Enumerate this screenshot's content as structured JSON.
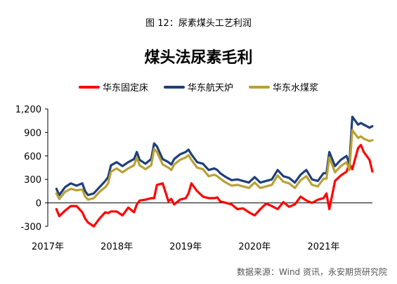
{
  "figure": {
    "caption": "图 12：尿素煤头工艺利润",
    "source": "数据来源：Wind 资讯，永安期货研究院"
  },
  "colors": {
    "fixed_bed": "#ff0000",
    "aerospace_furnace": "#1f3f7a",
    "coal_water_slurry": "#b8a135",
    "axis": "#000000"
  },
  "chart_data": {
    "type": "line",
    "title": "煤头法尿素毛利",
    "xlabel": "",
    "ylabel": "",
    "x_tick_labels": [
      "2017年",
      "2018年",
      "2019年",
      "2020年",
      "2021年"
    ],
    "x_tick_values": [
      0,
      12,
      24,
      36,
      48
    ],
    "xlim": [
      0,
      56.5
    ],
    "y_ticks": [
      -300,
      0,
      300,
      600,
      900,
      1200
    ],
    "y_tick_labels": [
      "-300",
      "0",
      "300",
      "600",
      "900",
      "1,200"
    ],
    "ylim": [
      -300,
      1200
    ],
    "legend_position": "top",
    "x": [
      1.5,
      2,
      3,
      4,
      5,
      6,
      6.5,
      7,
      8,
      9,
      10,
      10.5,
      11,
      12,
      13,
      14,
      15,
      15.5,
      16,
      17,
      18,
      18.5,
      19,
      20,
      21,
      21.5,
      22,
      23,
      24,
      24.5,
      25,
      26,
      27,
      28,
      29,
      29.5,
      30,
      31,
      32,
      33,
      34,
      35,
      36,
      37,
      38,
      39,
      40,
      41,
      42,
      43,
      44,
      45,
      46,
      47,
      48,
      48.5,
      49,
      50,
      51,
      52,
      52.5,
      53,
      54,
      54.5,
      55,
      56,
      56.5
    ],
    "series": [
      {
        "name": "华东固定床",
        "key": "fixed_bed",
        "values": [
          -80,
          -170,
          -100,
          -40,
          -40,
          -120,
          -200,
          -250,
          -300,
          -200,
          -120,
          -130,
          -110,
          -110,
          -160,
          -60,
          -120,
          -20,
          30,
          40,
          60,
          60,
          230,
          250,
          20,
          50,
          -20,
          40,
          60,
          120,
          250,
          150,
          80,
          60,
          60,
          70,
          20,
          0,
          -20,
          -80,
          -70,
          -120,
          -160,
          -80,
          -10,
          -40,
          -80,
          10,
          -50,
          -20,
          80,
          30,
          0,
          40,
          60,
          120,
          -80,
          280,
          350,
          400,
          500,
          430,
          700,
          740,
          650,
          550,
          400
        ]
      },
      {
        "name": "华东航天炉",
        "key": "aerospace_furnace",
        "values": [
          180,
          100,
          200,
          250,
          220,
          250,
          150,
          100,
          120,
          200,
          280,
          330,
          480,
          520,
          470,
          520,
          560,
          650,
          550,
          500,
          560,
          760,
          720,
          560,
          520,
          490,
          560,
          620,
          650,
          680,
          620,
          520,
          500,
          420,
          440,
          420,
          380,
          330,
          290,
          300,
          280,
          260,
          330,
          260,
          280,
          300,
          420,
          340,
          320,
          260,
          360,
          420,
          300,
          280,
          380,
          380,
          650,
          470,
          550,
          600,
          500,
          1100,
          1000,
          1020,
          1000,
          960,
          980
        ]
      },
      {
        "name": "华东水煤浆",
        "key": "coal_water_slurry",
        "values": [
          120,
          50,
          140,
          180,
          160,
          170,
          80,
          40,
          60,
          140,
          200,
          250,
          400,
          440,
          390,
          440,
          480,
          580,
          480,
          430,
          480,
          690,
          650,
          490,
          450,
          420,
          490,
          550,
          580,
          610,
          550,
          450,
          430,
          340,
          360,
          340,
          310,
          260,
          220,
          230,
          210,
          190,
          260,
          190,
          210,
          230,
          350,
          270,
          250,
          190,
          290,
          340,
          230,
          210,
          310,
          310,
          580,
          390,
          470,
          520,
          420,
          930,
          830,
          850,
          820,
          790,
          800
        ]
      }
    ]
  }
}
